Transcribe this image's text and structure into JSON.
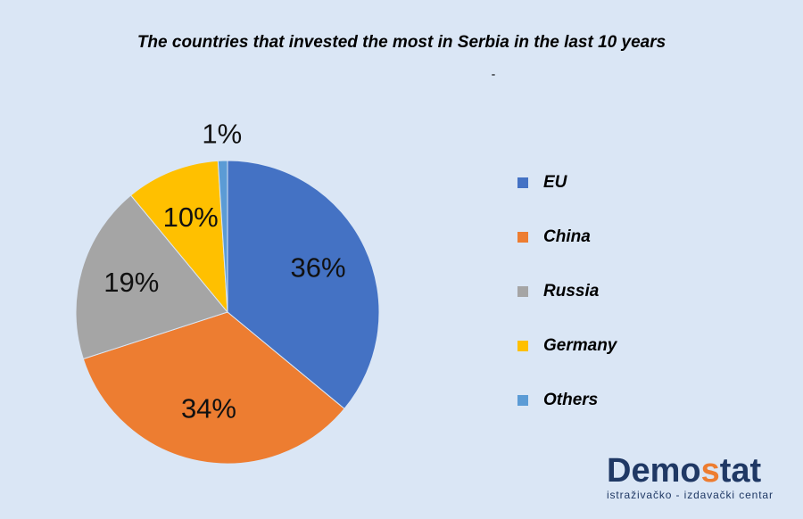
{
  "chart_data": {
    "type": "pie",
    "title": "The countries that invested the most in Serbia in the last 10 years",
    "subtitle": "-",
    "categories": [
      "EU",
      "China",
      "Russia",
      "Germany",
      "Others"
    ],
    "values": [
      36,
      34,
      19,
      10,
      1
    ],
    "value_labels": [
      "36%",
      "34%",
      "19%",
      "10%",
      "1%"
    ],
    "colors": [
      "#4472c4",
      "#ed7d31",
      "#a5a5a5",
      "#ffc000",
      "#5b9bd5"
    ],
    "legend": "right"
  },
  "logo": {
    "parts": [
      "Demo",
      "s",
      "tat"
    ],
    "tagline": "istraživačko - izdavački  centar"
  }
}
